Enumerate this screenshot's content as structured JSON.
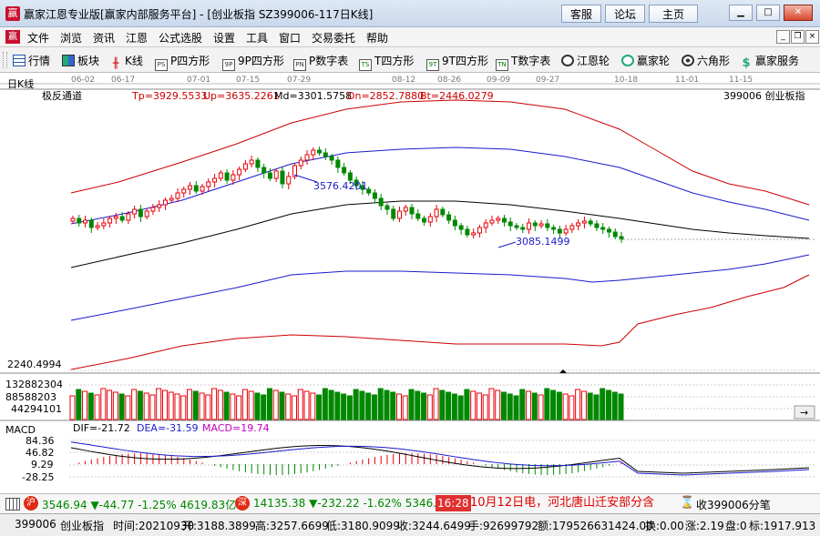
{
  "window": {
    "title": "赢家江恩专业版[赢家内部服务平台] - [创业板指  SZ399006-117日K线]",
    "buttons": [
      "客服",
      "论坛",
      "主页"
    ]
  },
  "menu": [
    "文件",
    "浏览",
    "资讯",
    "江恩",
    "公式选股",
    "设置",
    "工具",
    "窗口",
    "交易委托",
    "帮助"
  ],
  "toolbar": [
    {
      "label": "行情",
      "icon": "grid-icon"
    },
    {
      "label": "板块",
      "icon": "blocks-icon"
    },
    {
      "label": "K线",
      "icon": "candlestick-icon"
    },
    {
      "label": "P四方形",
      "icon": "p-square-icon"
    },
    {
      "label": "9P四方形",
      "icon": "9p-square-icon"
    },
    {
      "label": "P数字表",
      "icon": "pn-table-icon"
    },
    {
      "label": "T四方形",
      "icon": "t-square-icon"
    },
    {
      "label": "9T四方形",
      "icon": "9t-square-icon"
    },
    {
      "label": "T数字表",
      "icon": "tn-table-icon"
    },
    {
      "label": "江恩轮",
      "icon": "gann-wheel-icon"
    },
    {
      "label": "赢家轮",
      "icon": "winner-wheel-icon"
    },
    {
      "label": "六角形",
      "icon": "hexagon-icon"
    },
    {
      "label": "赢家服务",
      "icon": "dollar-icon"
    }
  ],
  "chart": {
    "period_label": "日K线",
    "indicator_name": "极反通道",
    "indicator_values": [
      "Tp=3929.5533",
      "Up=3635.2261",
      "Md=3301.5758",
      "Dn=2852.7880",
      "Bt=2446.0279"
    ],
    "symbol_label": "399006 创业板指",
    "date_ticks": [
      "06-02",
      "06-17",
      "07-01",
      "07-15",
      "07-29",
      "08-12",
      "08-26",
      "09-09",
      "09-27",
      "10-18",
      "11-01",
      "11-15"
    ],
    "price_annotations": [
      "3576.4201",
      "3085.1499"
    ],
    "lowest_price_label": "2240.4994",
    "volume_ticks": [
      "132882304",
      "88588203",
      "44294101"
    ],
    "macd_label": "MACD",
    "macd_values": [
      "DIF=-21.72",
      "DEA=-31.59",
      "MACD=19.74"
    ],
    "macd_ticks": [
      "84.36",
      "46.82",
      "9.29",
      "-28.25"
    ],
    "colors": {
      "up": "#e8000b",
      "down": "#008800",
      "upper_band": "#cc0000",
      "mid_band": "#1a1acc",
      "center": "#000000"
    }
  },
  "stockbar": {
    "index1_value": "3546.94",
    "index1_change": "▼-44.77",
    "index1_pct": "-1.25%",
    "index1_amount": "4619.83亿",
    "index2_value": "14135.38",
    "index2_change": "▼-232.22",
    "index2_pct": "-1.62%",
    "index2_amount": "5346.0",
    "time": "16:28",
    "news": "10月12日电，河北唐山迁安部分含",
    "receive_text": "收399006分笔"
  },
  "status": {
    "code": "399006",
    "name": "创业板指",
    "fields": [
      "时间:20210930",
      "开:3188.3899",
      "高:3257.6699",
      "低:3180.9099",
      "收:3244.6499",
      "手:92699792",
      "额:179526631424.00",
      "换:0.00",
      "涨:2.19",
      "盘:0",
      "标:1917.913"
    ]
  }
}
